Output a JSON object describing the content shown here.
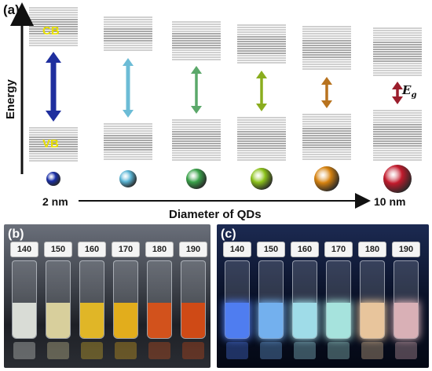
{
  "panel_a": {
    "label": "(a)",
    "y_axis_label": "Energy",
    "cb_label": "CB",
    "vb_label": "VB",
    "eg_label": "E",
    "eg_sub": "g",
    "x_axis_label": "Diameter of QDs",
    "x_start_label": "2 nm",
    "x_end_label": "10 nm",
    "label_color": "#e8e000",
    "dots": [
      {
        "color": "#1a2fa8",
        "arrow": "#1f2f9e"
      },
      {
        "color": "#5bb6d6",
        "arrow": "#6cbcd6"
      },
      {
        "color": "#3aa24a",
        "arrow": "#5ba86a"
      },
      {
        "color": "#8cc21a",
        "arrow": "#8aad1e"
      },
      {
        "color": "#d6820f",
        "arrow": "#b8731f"
      },
      {
        "color": "#c21a2c",
        "arrow": "#9b1e2c"
      }
    ]
  },
  "panel_b": {
    "label": "(b)",
    "vials": [
      {
        "cap": "140",
        "liquid": "#d9dcd6"
      },
      {
        "cap": "150",
        "liquid": "#d8cf9c"
      },
      {
        "cap": "160",
        "liquid": "#e0b627"
      },
      {
        "cap": "170",
        "liquid": "#e2ad1c"
      },
      {
        "cap": "180",
        "liquid": "#d2521c"
      },
      {
        "cap": "190",
        "liquid": "#cf4a16"
      }
    ]
  },
  "panel_c": {
    "label": "(c)",
    "vials": [
      {
        "cap": "140",
        "liquid": "#4f7df0"
      },
      {
        "cap": "150",
        "liquid": "#73b0ee"
      },
      {
        "cap": "160",
        "liquid": "#9fdce8"
      },
      {
        "cap": "170",
        "liquid": "#a6e3dd"
      },
      {
        "cap": "180",
        "liquid": "#e8c59c"
      },
      {
        "cap": "190",
        "liquid": "#d9b0b6"
      }
    ]
  }
}
